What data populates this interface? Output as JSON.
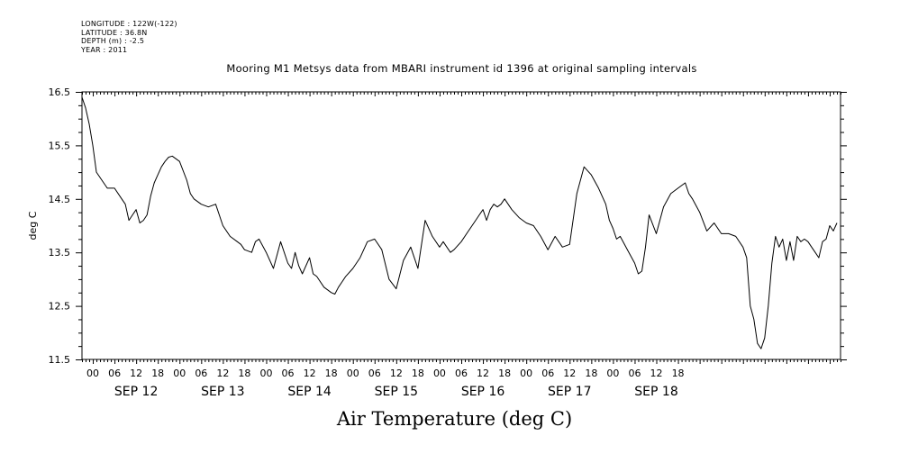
{
  "header": {
    "lines": [
      "LONGITUDE : 122W(-122)",
      "LATITUDE : 36.8N",
      "DEPTH (m) : -2.5",
      "YEAR : 2011"
    ]
  },
  "chart_data": {
    "type": "line",
    "title": "Mooring M1 Metsys data from MBARI instrument id 1396 at original sampling intervals",
    "xlabel": "Air Temperature (deg C)",
    "ylabel": "deg C",
    "ylim": [
      11.5,
      16.5
    ],
    "yticks": [
      "16.5",
      "15.5",
      "14.5",
      "13.5",
      "12.5",
      "11.5"
    ],
    "xlim_hours": [
      -3,
      207
    ],
    "hour_labels": [
      "00",
      "06",
      "12",
      "18"
    ],
    "days": [
      "SEP 12",
      "SEP 13",
      "SEP 14",
      "SEP 15",
      "SEP 16",
      "SEP 17",
      "SEP 18"
    ],
    "grid": false,
    "series": [
      {
        "name": "",
        "color": "#000000",
        "x": [
          -3,
          -2,
          -1,
          0,
          1,
          2,
          3,
          4,
          6,
          8,
          9,
          10,
          11,
          12,
          13,
          14,
          15,
          16,
          17,
          18,
          19,
          20,
          21,
          22,
          24,
          26,
          27,
          28,
          30,
          32,
          34,
          36,
          38,
          40,
          41,
          42,
          44,
          45,
          46,
          48,
          50,
          52,
          54,
          55,
          56,
          57,
          58,
          60,
          61,
          62,
          64,
          66,
          67,
          68,
          69,
          70,
          72,
          74,
          76,
          78,
          80,
          82,
          84,
          86,
          88,
          90,
          92,
          94,
          96,
          97,
          98,
          99,
          100,
          102,
          104,
          106,
          107,
          108,
          109,
          110,
          111,
          112,
          113,
          114,
          116,
          118,
          120,
          122,
          124,
          126,
          128,
          130,
          132,
          134,
          136,
          138,
          140,
          142,
          143,
          144,
          145,
          146,
          148,
          150,
          151,
          152,
          153,
          154,
          156,
          158,
          160,
          162,
          164,
          165,
          166,
          168,
          170,
          172,
          174,
          176,
          178,
          180,
          181,
          182,
          183,
          184,
          185,
          186,
          187,
          188,
          189,
          190,
          191,
          192,
          193,
          194,
          195,
          196,
          197,
          198,
          199,
          200,
          201,
          202,
          203,
          204,
          205,
          206
        ],
        "values": [
          16.4,
          16.2,
          15.9,
          15.5,
          15.0,
          14.9,
          14.8,
          14.7,
          14.7,
          14.5,
          14.4,
          14.1,
          14.2,
          14.3,
          14.05,
          14.1,
          14.2,
          14.55,
          14.8,
          14.95,
          15.1,
          15.2,
          15.28,
          15.3,
          15.2,
          14.85,
          14.6,
          14.5,
          14.4,
          14.35,
          14.4,
          14.0,
          13.8,
          13.7,
          13.65,
          13.55,
          13.5,
          13.7,
          13.75,
          13.5,
          13.2,
          13.7,
          13.3,
          13.2,
          13.5,
          13.25,
          13.1,
          13.4,
          13.1,
          13.05,
          12.85,
          12.75,
          12.72,
          12.85,
          12.95,
          13.05,
          13.2,
          13.4,
          13.7,
          13.75,
          13.55,
          13.0,
          12.82,
          13.35,
          13.6,
          13.2,
          14.1,
          13.8,
          13.6,
          13.7,
          13.6,
          13.5,
          13.55,
          13.7,
          13.9,
          14.1,
          14.2,
          14.3,
          14.1,
          14.3,
          14.4,
          14.35,
          14.4,
          14.5,
          14.3,
          14.15,
          14.05,
          14.0,
          13.8,
          13.55,
          13.8,
          13.6,
          13.65,
          14.6,
          15.1,
          14.95,
          14.7,
          14.4,
          14.1,
          13.95,
          13.75,
          13.8,
          13.55,
          13.3,
          13.1,
          13.15,
          13.6,
          14.2,
          13.85,
          14.35,
          14.6,
          14.7,
          14.8,
          14.6,
          14.5,
          14.25,
          13.9,
          14.05,
          13.85,
          13.85,
          13.8,
          13.6,
          13.4,
          12.5,
          12.25,
          11.8,
          11.7,
          11.9,
          12.5,
          13.3,
          13.8,
          13.6,
          13.75,
          13.35,
          13.7,
          13.35,
          13.8,
          13.7,
          13.75,
          13.7,
          13.6,
          13.5,
          13.4,
          13.7,
          13.75,
          14.0,
          13.9,
          14.05
        ]
      }
    ]
  }
}
